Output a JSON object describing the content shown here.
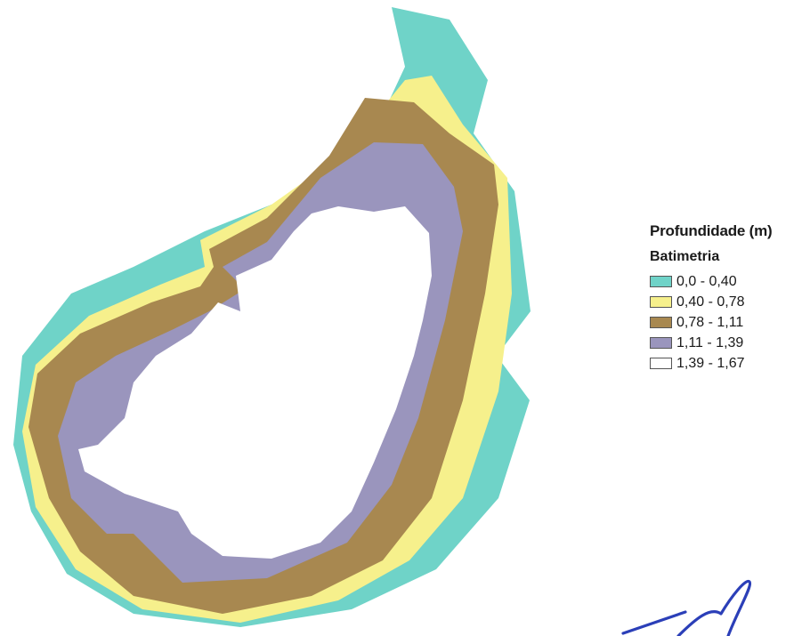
{
  "legend": {
    "title": "Profundidade (m)",
    "subtitle": "Batimetria",
    "classes": [
      {
        "label": "0,0 - 0,40",
        "color": "#6fd3c8"
      },
      {
        "label": "0,40 - 0,78",
        "color": "#f6f08c"
      },
      {
        "label": "0,78 - 1,11",
        "color": "#a88850"
      },
      {
        "label": "1,11 - 1,39",
        "color": "#9a95bd"
      },
      {
        "label": "1,39 - 1,67",
        "color": "#ffffff"
      }
    ]
  },
  "signature": {
    "color": "#2b3fb8"
  }
}
